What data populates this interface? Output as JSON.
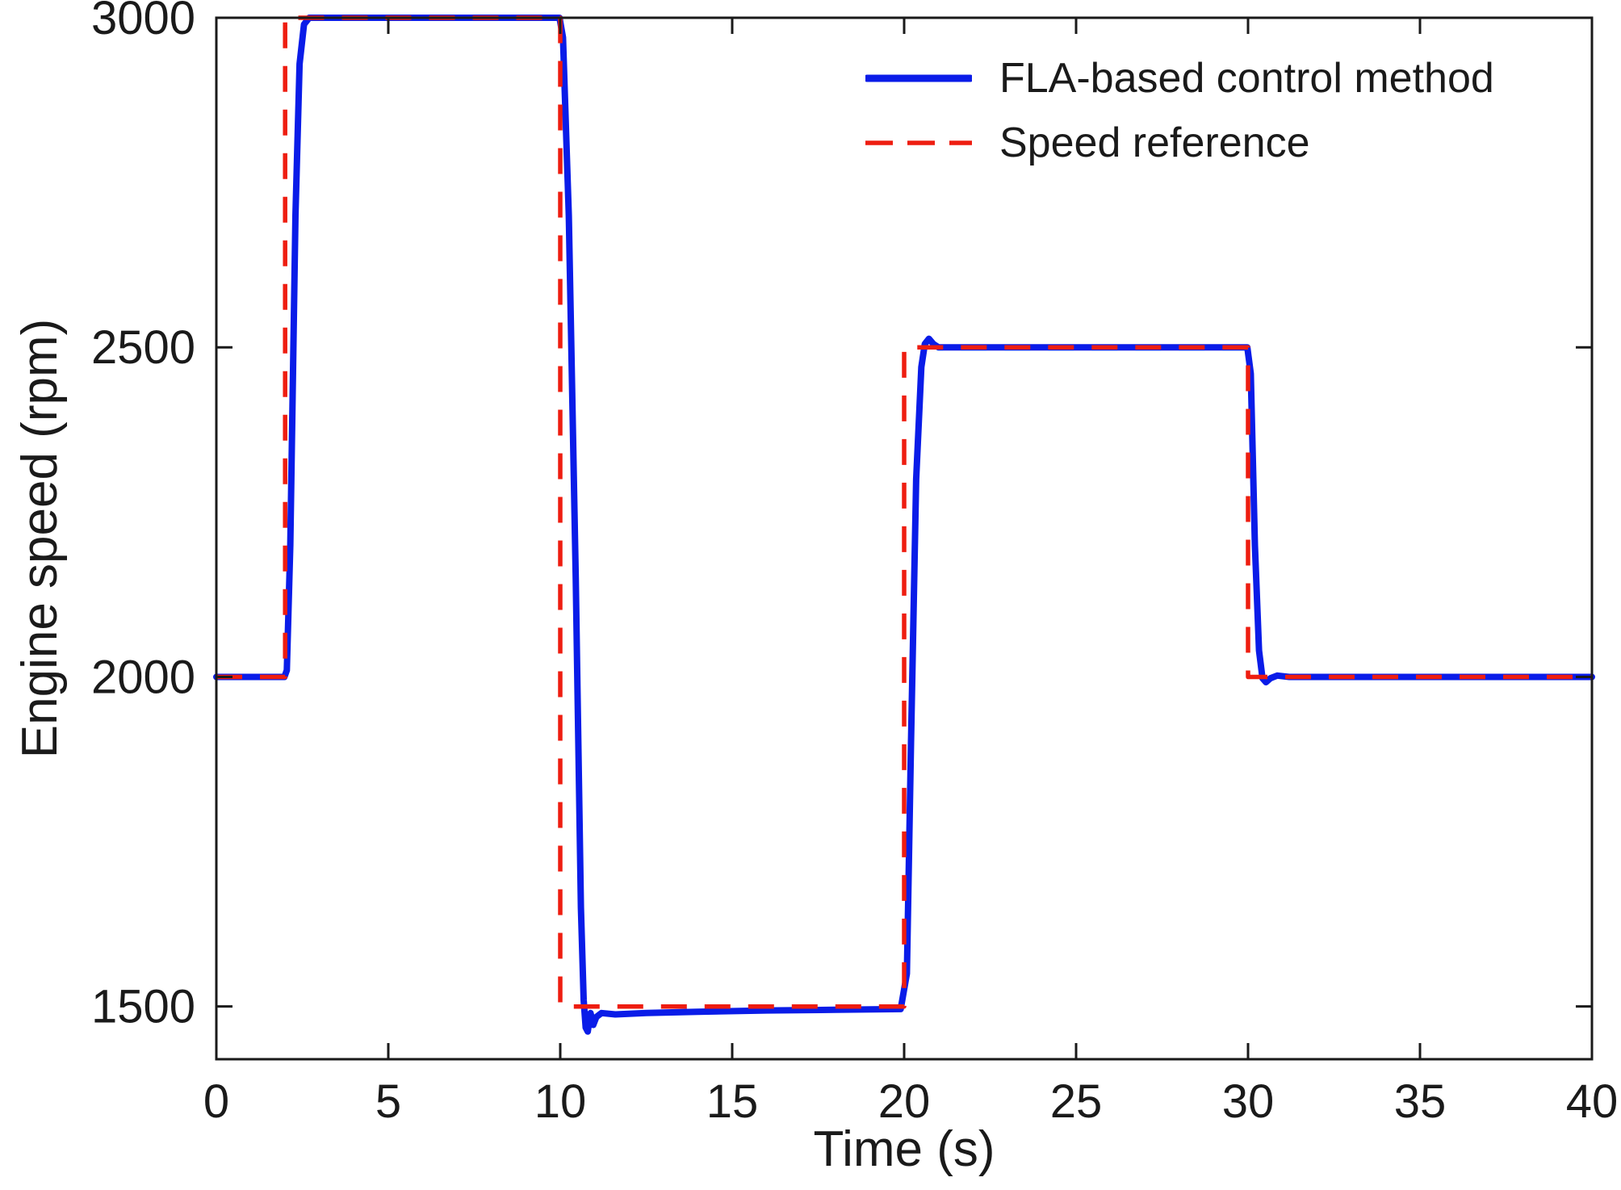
{
  "figure": {
    "kind": "matlab-style line plot"
  },
  "chart_data": {
    "type": "line",
    "title": "",
    "xlabel": "Time (s)",
    "ylabel": "Engine speed (rpm)",
    "xlim": [
      0,
      40
    ],
    "ylim": [
      1420,
      3000
    ],
    "xticks": [
      0,
      5,
      10,
      15,
      20,
      25,
      30,
      35,
      40
    ],
    "yticks": [
      1500,
      2000,
      2500,
      3000
    ],
    "grid": false,
    "legend_position": "upper right",
    "colors": {
      "fla_line": "#0a1ce8",
      "reference_line": "#ee1d10",
      "axis": "#1a1a1a"
    },
    "series": [
      {
        "name": "FLA-based control method",
        "style": "solid",
        "color": "#0a1ce8",
        "points": [
          [
            0,
            2000
          ],
          [
            1.98,
            2000
          ],
          [
            2.05,
            2010
          ],
          [
            2.15,
            2200
          ],
          [
            2.3,
            2700
          ],
          [
            2.42,
            2930
          ],
          [
            2.55,
            2990
          ],
          [
            2.7,
            3000
          ],
          [
            9.98,
            3000
          ],
          [
            10.08,
            2970
          ],
          [
            10.25,
            2700
          ],
          [
            10.45,
            2150
          ],
          [
            10.6,
            1650
          ],
          [
            10.68,
            1510
          ],
          [
            10.74,
            1468
          ],
          [
            10.8,
            1462
          ],
          [
            10.88,
            1490
          ],
          [
            10.96,
            1472
          ],
          [
            11.05,
            1484
          ],
          [
            11.2,
            1490
          ],
          [
            11.6,
            1488
          ],
          [
            12.5,
            1490
          ],
          [
            14,
            1492
          ],
          [
            16,
            1494
          ],
          [
            18,
            1495
          ],
          [
            19.9,
            1496
          ],
          [
            20.08,
            1550
          ],
          [
            20.2,
            1900
          ],
          [
            20.35,
            2300
          ],
          [
            20.5,
            2470
          ],
          [
            20.6,
            2505
          ],
          [
            20.72,
            2513
          ],
          [
            20.85,
            2505
          ],
          [
            21.0,
            2500
          ],
          [
            29.98,
            2500
          ],
          [
            30.08,
            2460
          ],
          [
            30.2,
            2200
          ],
          [
            30.32,
            2040
          ],
          [
            30.42,
            1998
          ],
          [
            30.52,
            1992
          ],
          [
            30.65,
            1998
          ],
          [
            30.85,
            2002
          ],
          [
            31.2,
            2000
          ],
          [
            40,
            2000
          ]
        ]
      },
      {
        "name": "Speed reference",
        "style": "dashed",
        "color": "#ee1d10",
        "points": [
          [
            0,
            2000
          ],
          [
            2,
            2000
          ],
          [
            2,
            3000
          ],
          [
            10,
            3000
          ],
          [
            10,
            1500
          ],
          [
            20,
            1500
          ],
          [
            20,
            2500
          ],
          [
            30,
            2500
          ],
          [
            30,
            2000
          ],
          [
            40,
            2000
          ]
        ]
      }
    ]
  }
}
